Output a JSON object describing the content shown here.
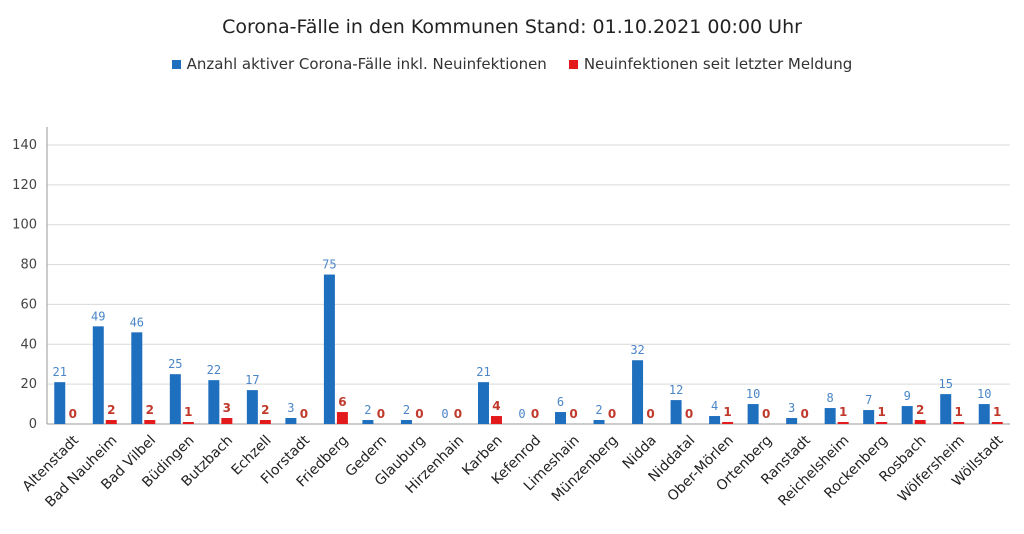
{
  "chart_data": {
    "type": "bar",
    "title": "Corona-Fälle in den Kommunen Stand: 01.10.2021 00:00 Uhr",
    "categories": [
      "Altenstadt",
      "Bad Nauheim",
      "Bad Vilbel",
      "Büdingen",
      "Butzbach",
      "Echzell",
      "Florstadt",
      "Friedberg",
      "Gedern",
      "Glauburg",
      "Hirzenhain",
      "Karben",
      "Kefenrod",
      "Limeshain",
      "Münzenberg",
      "Nidda",
      "Niddatal",
      "Ober-Mörlen",
      "Ortenberg",
      "Ranstadt",
      "Reichelsheim",
      "Rockenberg",
      "Rosbach",
      "Wölfersheim",
      "Wöllstadt"
    ],
    "series": [
      {
        "name": "Anzahl aktiver Corona-Fälle inkl. Neuinfektionen",
        "color": "#1f6fbf",
        "values": [
          21,
          49,
          46,
          25,
          22,
          17,
          3,
          75,
          2,
          2,
          0,
          21,
          0,
          6,
          2,
          32,
          12,
          4,
          10,
          3,
          8,
          7,
          9,
          15,
          10
        ]
      },
      {
        "name": "Neuinfektionen seit letzter Meldung",
        "color": "#e31a1c",
        "values": [
          0,
          2,
          2,
          1,
          3,
          2,
          0,
          6,
          0,
          0,
          0,
          4,
          0,
          0,
          0,
          0,
          0,
          1,
          0,
          0,
          1,
          1,
          2,
          1,
          1
        ]
      }
    ],
    "ylim": [
      0,
      140
    ],
    "yticks": [
      0,
      20,
      40,
      60,
      80,
      100,
      120,
      140
    ],
    "grid": true,
    "legend": "top-center"
  }
}
